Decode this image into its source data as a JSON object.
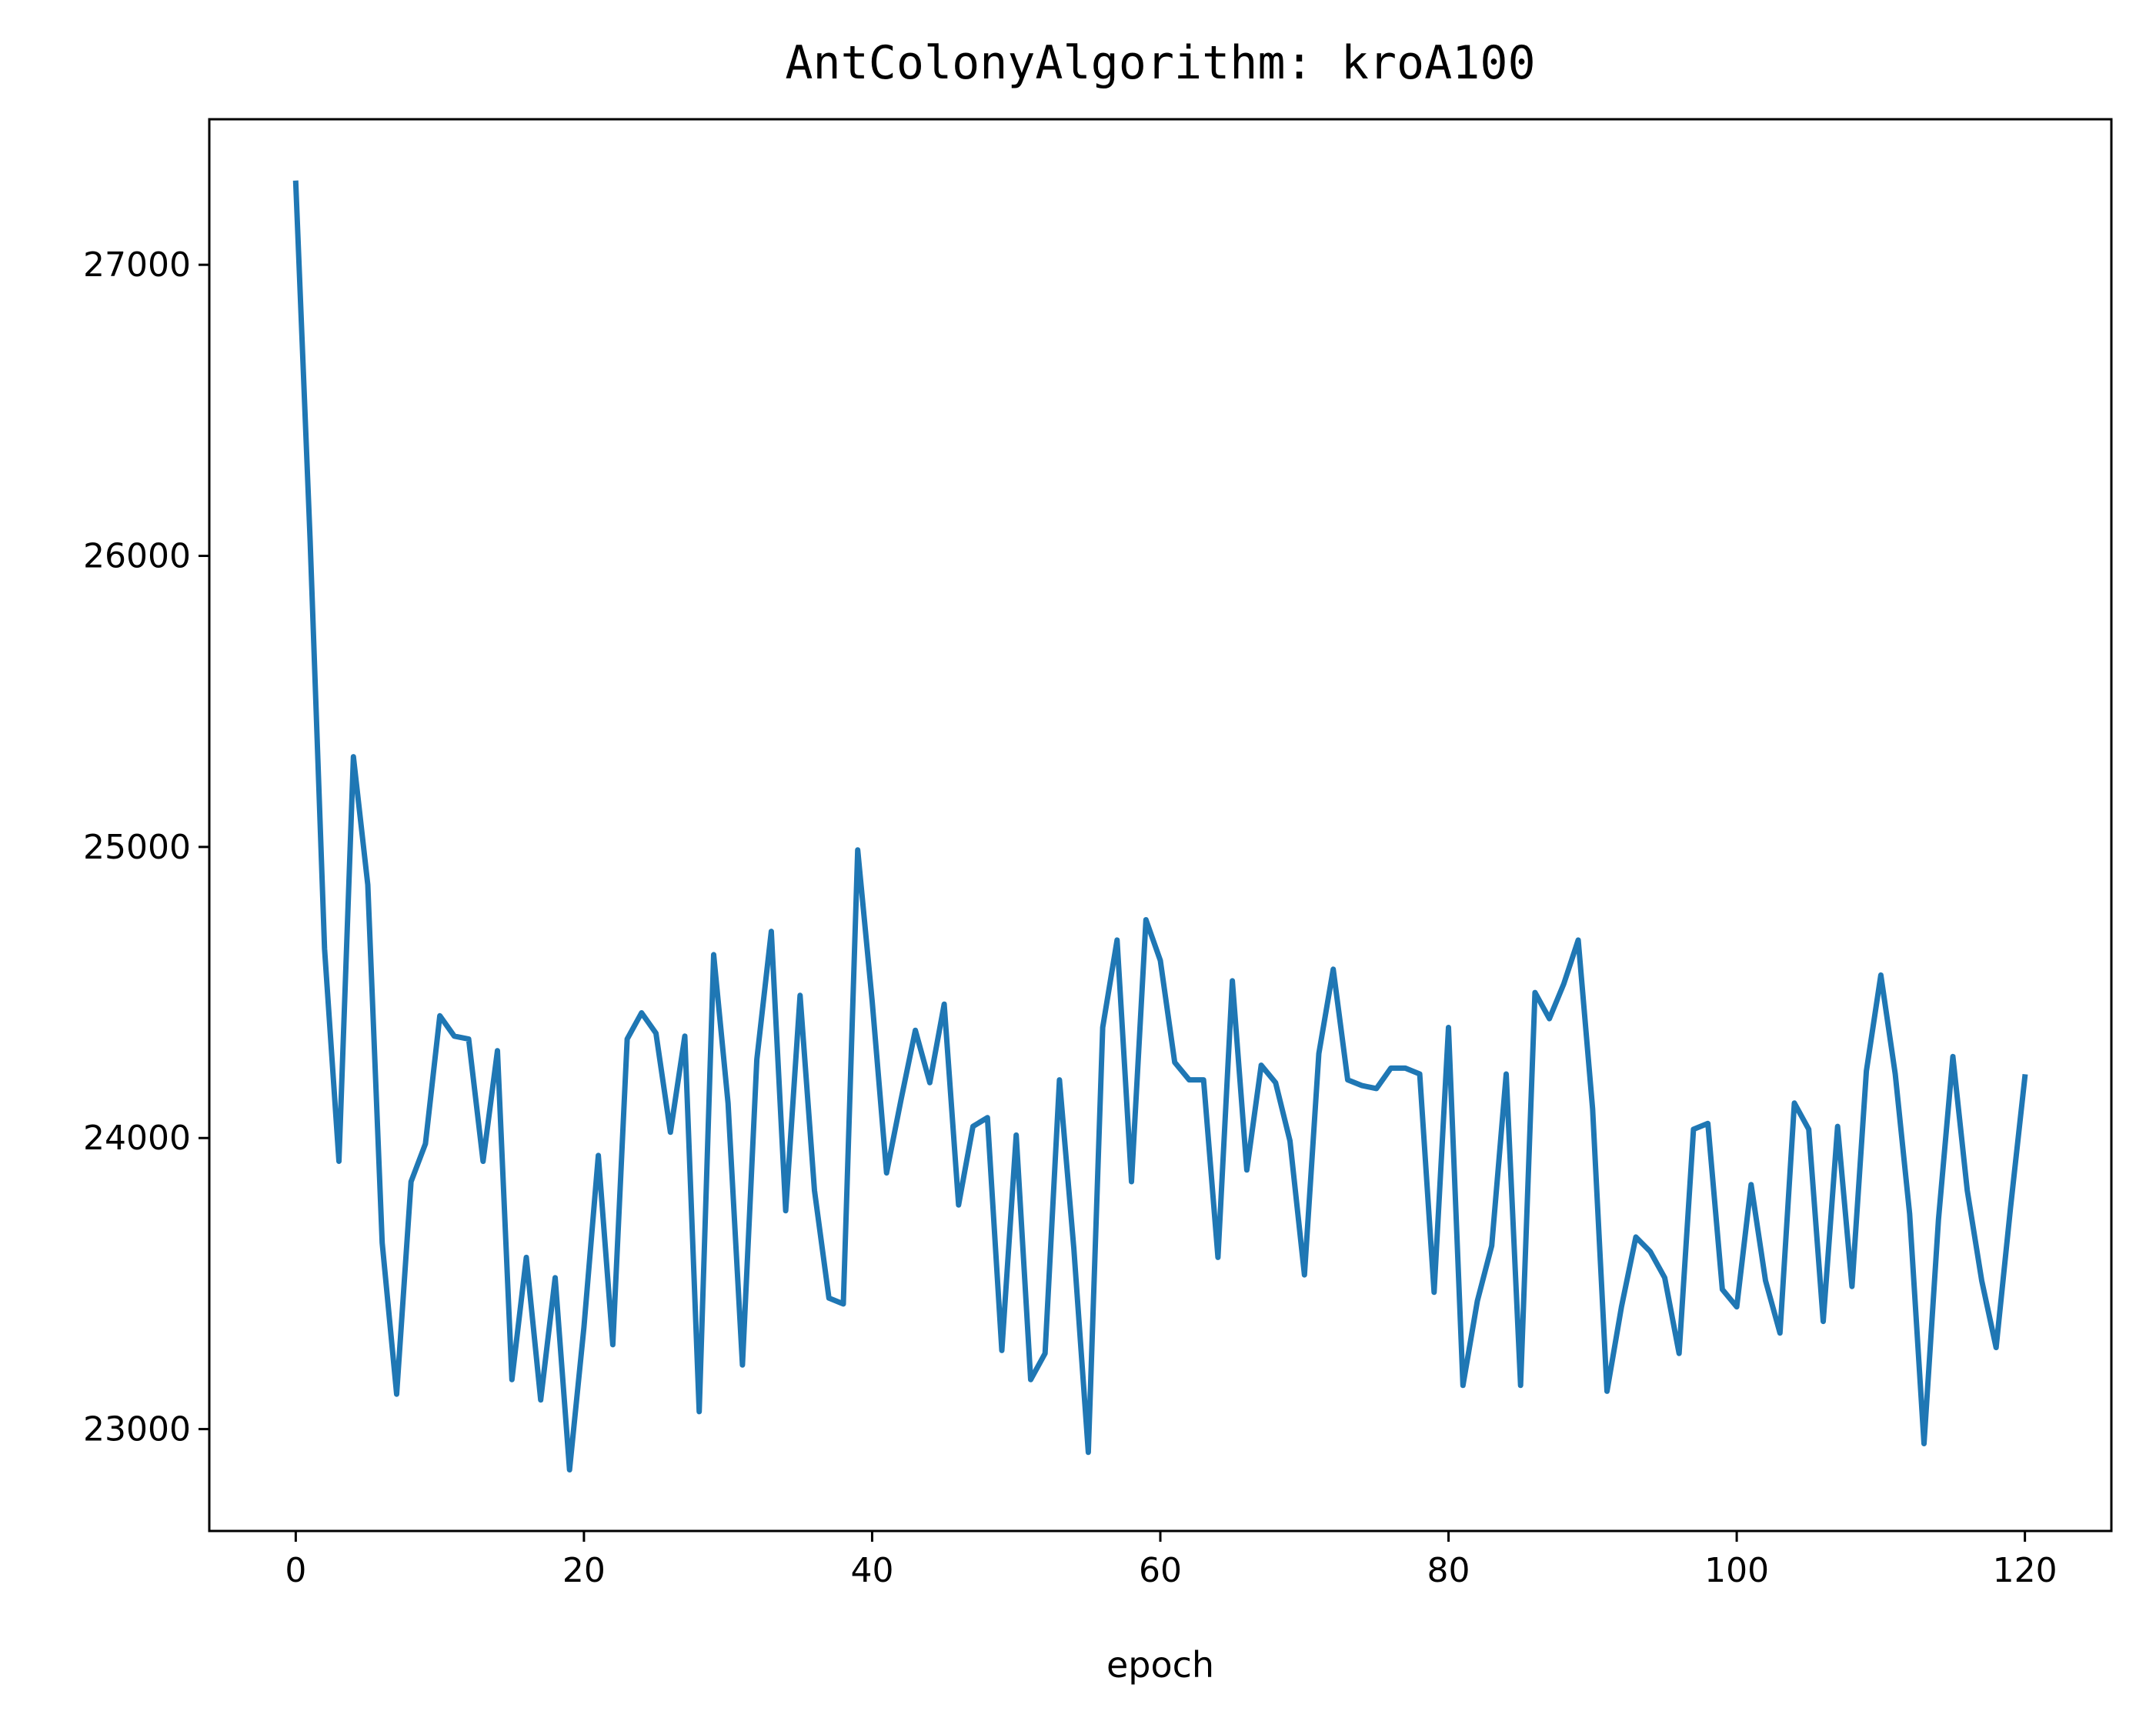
{
  "chart_data": {
    "type": "line",
    "title": "AntColonyAlgorithm: kroA100",
    "xlabel": "epoch",
    "ylabel": "",
    "xlim": [
      -6,
      126
    ],
    "ylim": [
      22650,
      27500
    ],
    "xticks": [
      0,
      20,
      40,
      60,
      80,
      100,
      120
    ],
    "yticks": [
      23000,
      24000,
      25000,
      26000,
      27000
    ],
    "grid": false,
    "line_color": "#1f77b4",
    "series": [
      {
        "x": [
          0,
          1,
          2,
          3,
          4,
          5,
          6,
          7,
          8,
          9,
          10,
          11,
          12,
          13,
          14,
          15,
          16,
          17,
          18,
          19,
          20,
          21,
          22,
          23,
          24,
          25,
          26,
          27,
          28,
          29,
          30,
          31,
          32,
          33,
          34,
          35,
          36,
          37,
          38,
          39,
          40,
          41,
          42,
          43,
          44,
          45,
          46,
          47,
          48,
          49,
          50,
          51,
          52,
          53,
          54,
          55,
          56,
          57,
          58,
          59,
          60,
          61,
          62,
          63,
          64,
          65,
          66,
          67,
          68,
          69,
          70,
          71,
          72,
          73,
          74,
          75,
          76,
          77,
          78,
          79,
          80,
          81,
          82,
          83,
          84,
          85,
          86,
          87,
          88,
          89,
          90,
          91,
          92,
          93,
          94,
          95,
          96,
          97,
          98,
          99,
          100,
          101,
          102,
          103,
          104,
          105,
          106,
          107,
          108,
          109,
          110,
          111,
          112,
          113,
          114,
          115,
          116,
          117,
          118,
          119,
          120
        ],
        "values": [
          27280,
          26050,
          24650,
          23920,
          25310,
          24870,
          23640,
          23120,
          23850,
          23980,
          24420,
          24350,
          24340,
          23920,
          24300,
          23170,
          23590,
          23100,
          23520,
          22860,
          23350,
          23940,
          23290,
          24340,
          24430,
          24360,
          24020,
          24350,
          23060,
          24630,
          24120,
          23220,
          24270,
          24710,
          23750,
          24490,
          23820,
          23450,
          23430,
          24990,
          24470,
          23880,
          24130,
          24370,
          24190,
          24460,
          23770,
          24040,
          24070,
          23270,
          24010,
          23170,
          23260,
          24200,
          23620,
          22920,
          24380,
          24680,
          23850,
          24750,
          24610,
          24260,
          24200,
          24200,
          23590,
          24540,
          23890,
          24250,
          24190,
          23990,
          23530,
          24290,
          24580,
          24200,
          24180,
          24170,
          24240,
          24240,
          24220,
          23470,
          24380,
          23150,
          23440,
          23630,
          24220,
          23150,
          24500,
          24410,
          24530,
          24680,
          24100,
          23130,
          23420,
          23660,
          23610,
          23520,
          23260,
          24030,
          24050,
          23480,
          23420,
          23840,
          23510,
          23330,
          24120,
          24030,
          23370,
          24040,
          23490,
          24230,
          24560,
          24220,
          23740,
          22950,
          23720,
          24280,
          23820,
          23510,
          23280,
          23760,
          24210
        ]
      }
    ]
  }
}
